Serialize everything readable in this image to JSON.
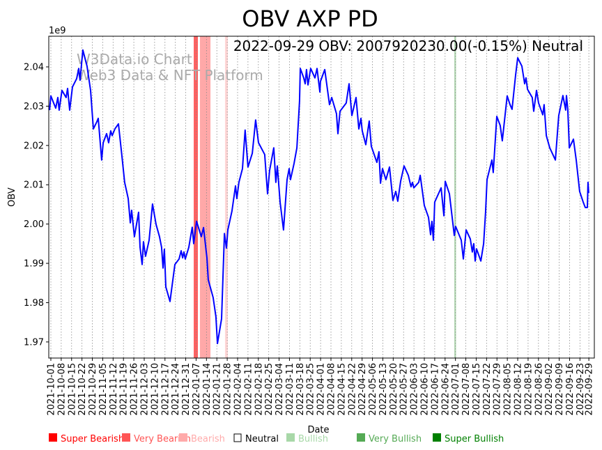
{
  "chart_data": {
    "type": "line",
    "title": "OBV AXP PD",
    "annotation": "2022-09-29 OBV: 2007920230.00(-0.15%) Neutral",
    "watermark": [
      "W3Data.io Chart",
      "Web3 Data & NFT Platform"
    ],
    "xlabel": "Date",
    "ylabel": "OBV",
    "y_multiplier_label": "1e9",
    "x_unit": "days since 2021-10-01",
    "xlim": [
      -1.4,
      366.7
    ],
    "ylim": [
      1.9659,
      2.0478
    ],
    "grid": "vertical dotted at x ticks",
    "line_color": "#0000ff",
    "yticks": [
      1.97,
      1.98,
      1.99,
      2.0,
      2.01,
      2.02,
      2.03,
      2.04
    ],
    "ytick_labels": [
      "1.97",
      "1.98",
      "1.99",
      "2.00",
      "2.01",
      "2.02",
      "2.03",
      "2.04"
    ],
    "xtick_labels": [
      "2021-10-01",
      "2021-10-08",
      "2021-10-15",
      "2021-10-22",
      "2021-10-29",
      "2021-11-05",
      "2021-11-12",
      "2021-11-19",
      "2021-11-26",
      "2021-12-03",
      "2021-12-10",
      "2021-12-17",
      "2021-12-24",
      "2021-12-31",
      "2022-01-07",
      "2022-01-14",
      "2022-01-21",
      "2022-01-28",
      "2022-02-04",
      "2022-02-11",
      "2022-02-18",
      "2022-02-25",
      "2022-03-04",
      "2022-03-11",
      "2022-03-18",
      "2022-03-25",
      "2022-04-01",
      "2022-04-08",
      "2022-04-15",
      "2022-04-22",
      "2022-04-29",
      "2022-05-06",
      "2022-05-13",
      "2022-05-20",
      "2022-05-27",
      "2022-06-03",
      "2022-06-10",
      "2022-06-17",
      "2022-06-24",
      "2022-07-01",
      "2022-07-08",
      "2022-07-15",
      "2022-07-22",
      "2022-07-29",
      "2022-08-05",
      "2022-08-12",
      "2022-08-19",
      "2022-08-26",
      "2022-09-02",
      "2022-09-09",
      "2022-09-16",
      "2022-09-23",
      "2022-09-29"
    ],
    "xtick_days": [
      0,
      7,
      14,
      21,
      28,
      35,
      42,
      49,
      56,
      63,
      70,
      77,
      84,
      91,
      98,
      105,
      112,
      119,
      126,
      133,
      140,
      147,
      154,
      161,
      168,
      175,
      182,
      189,
      196,
      203,
      210,
      217,
      224,
      231,
      238,
      245,
      252,
      259,
      266,
      273,
      280,
      287,
      294,
      301,
      308,
      315,
      322,
      329,
      336,
      343,
      350,
      357,
      363
    ],
    "x": [
      -0.9,
      0,
      1.9,
      3.3,
      4.7,
      5.6,
      7.5,
      10.3,
      11.3,
      12.7,
      14.6,
      17.4,
      18.8,
      19.7,
      21.6,
      24.4,
      26.8,
      28.7,
      31.0,
      32.0,
      34.3,
      35.3,
      37.6,
      39.0,
      40.4,
      41.4,
      43.2,
      45.6,
      48.0,
      49.8,
      52.2,
      53.6,
      54.5,
      56.4,
      59.2,
      60.2,
      61.6,
      62.5,
      63.9,
      66.3,
      68.6,
      71.0,
      73.3,
      74.7,
      75.7,
      76.6,
      77.6,
      80.4,
      83.7,
      86.5,
      87.9,
      88.9,
      89.8,
      90.7,
      93.1,
      95.4,
      96.4,
      98.3,
      101.5,
      103.0,
      105.3,
      106.2,
      109.5,
      111.4,
      112.4,
      115.2,
      117.1,
      118.5,
      119.4,
      122.2,
      124.6,
      125.5,
      126.9,
      129.3,
      131.1,
      133.0,
      135.9,
      138.2,
      140.1,
      144.3,
      146.2,
      147.6,
      150.4,
      151.8,
      152.8,
      154.7,
      157.0,
      159.4,
      160.8,
      161.7,
      164.1,
      166.0,
      167.8,
      168.3,
      170.6,
      171.6,
      172.5,
      173.5,
      175.3,
      178.2,
      179.6,
      181.5,
      181.9,
      184.8,
      188.0,
      189.5,
      192.7,
      193.7,
      195.1,
      199.3,
      201.2,
      203.1,
      205.9,
      207.8,
      209.2,
      210.1,
      212.5,
      214.8,
      216.2,
      220.0,
      221.4,
      222.4,
      223.8,
      226.1,
      228.5,
      230.8,
      232.7,
      234.1,
      236.0,
      238.3,
      241.2,
      243.0,
      244.0,
      244.9,
      248.2,
      249.2,
      252.0,
      254.8,
      256.2,
      257.1,
      258.1,
      259.0,
      263.3,
      265.2,
      266.1,
      268.9,
      272.2,
      273.1,
      276.9,
      278.3,
      280.2,
      283.0,
      284.4,
      285.3,
      286.3,
      287.2,
      290.1,
      292.0,
      293.3,
      294.3,
      297.6,
      298.5,
      300.9,
      303.2,
      304.6,
      307.9,
      309.8,
      311.2,
      313.6,
      315.0,
      317.8,
      319.7,
      320.6,
      321.6,
      324.8,
      325.8,
      327.7,
      329.1,
      331.9,
      332.8,
      334.3,
      336.6,
      340.4,
      342.7,
      345.5,
      347.4,
      347.9,
      348.8,
      349.8,
      352.6,
      354.5,
      356.8,
      359.2,
      360.6,
      362.0,
      362.4,
      362.9
    ],
    "y": [
      2.029,
      2.0326,
      2.0308,
      2.0295,
      2.0322,
      2.029,
      2.034,
      2.0322,
      2.0345,
      2.029,
      2.0349,
      2.037,
      2.0396,
      2.0366,
      2.0443,
      2.0402,
      2.034,
      2.0242,
      2.026,
      2.0269,
      2.0163,
      2.0207,
      2.023,
      2.0207,
      2.0237,
      2.0225,
      2.0242,
      2.0255,
      2.0171,
      2.0106,
      2.0065,
      2.0003,
      2.0035,
      1.9968,
      2.003,
      1.9941,
      1.9897,
      1.9955,
      1.9918,
      1.9959,
      2.0051,
      1.9999,
      1.9968,
      1.9941,
      1.9888,
      1.9936,
      1.984,
      1.9803,
      1.9897,
      1.9911,
      1.9932,
      1.9914,
      1.9929,
      1.9911,
      1.9941,
      1.9992,
      1.995,
      2.0007,
      1.9968,
      1.9991,
      1.9914,
      1.9858,
      1.9813,
      1.9764,
      1.9696,
      1.9759,
      1.9976,
      1.9939,
      1.9985,
      2.0033,
      2.0097,
      2.0065,
      2.0106,
      2.0141,
      2.0239,
      2.0145,
      2.018,
      2.0265,
      2.0207,
      2.0177,
      2.0077,
      2.0136,
      2.0194,
      2.0106,
      2.0148,
      2.0056,
      1.9985,
      2.0113,
      2.0141,
      2.0113,
      2.0154,
      2.0194,
      2.0313,
      2.0396,
      2.0372,
      2.0357,
      2.0393,
      2.0354,
      2.0396,
      2.0372,
      2.0396,
      2.0336,
      2.0363,
      2.0393,
      2.0304,
      2.0322,
      2.0281,
      2.023,
      2.0287,
      2.0308,
      2.0357,
      2.0276,
      2.0322,
      2.0242,
      2.0269,
      2.0237,
      2.0202,
      2.0262,
      2.0198,
      2.0157,
      2.0184,
      2.0104,
      2.0141,
      2.0113,
      2.0145,
      2.006,
      2.0083,
      2.0058,
      2.0109,
      2.0148,
      2.0124,
      2.0095,
      2.0106,
      2.0092,
      2.0106,
      2.0124,
      2.0047,
      2.0017,
      1.9973,
      2.0007,
      1.9959,
      2.0056,
      2.0092,
      2.0021,
      2.0109,
      2.0077,
      1.9971,
      1.9994,
      1.9959,
      1.9911,
      1.9985,
      1.9962,
      1.9929,
      1.995,
      1.9906,
      1.9937,
      1.9906,
      1.995,
      2.003,
      2.0113,
      2.0163,
      2.0131,
      2.0274,
      2.0251,
      2.0212,
      2.0326,
      2.0304,
      2.0292,
      2.0379,
      2.0423,
      2.0402,
      2.0357,
      2.0372,
      2.0343,
      2.0322,
      2.0287,
      2.034,
      2.0308,
      2.0278,
      2.0304,
      2.0225,
      2.0194,
      2.0163,
      2.0276,
      2.0327,
      2.029,
      2.0327,
      2.0292,
      2.0194,
      2.0216,
      2.0163,
      2.0083,
      2.0056,
      2.0042,
      2.0042,
      2.0106,
      2.0079
    ],
    "bands": [
      {
        "signal": "Very Bearish",
        "start": 96.4,
        "end": 99.2,
        "color": "#ff6060"
      },
      {
        "signal": "Bearish",
        "start": 100.6,
        "end": 107.7,
        "color": "#ffa8a8"
      },
      {
        "signal": "Bearish",
        "start": 117.5,
        "end": 119.4,
        "color": "#ffd6d6"
      },
      {
        "signal": "Bullish",
        "start": 272.2,
        "end": 273.4,
        "color": "#b5dab5"
      }
    ],
    "legend": [
      {
        "label": "Super Bearish",
        "color": "#ff0000"
      },
      {
        "label": "Very Bearish",
        "color": "#ff5555"
      },
      {
        "label": "Bearish",
        "color": "#ffaaaa"
      },
      {
        "label": "Neutral",
        "color": "#000000",
        "hollow": true
      },
      {
        "label": "Bullish",
        "color": "#a8d8a8"
      },
      {
        "label": "Very Bullish",
        "color": "#55aa55"
      },
      {
        "label": "Super Bullish",
        "color": "#008000"
      }
    ],
    "legend_placement": "bottom"
  }
}
